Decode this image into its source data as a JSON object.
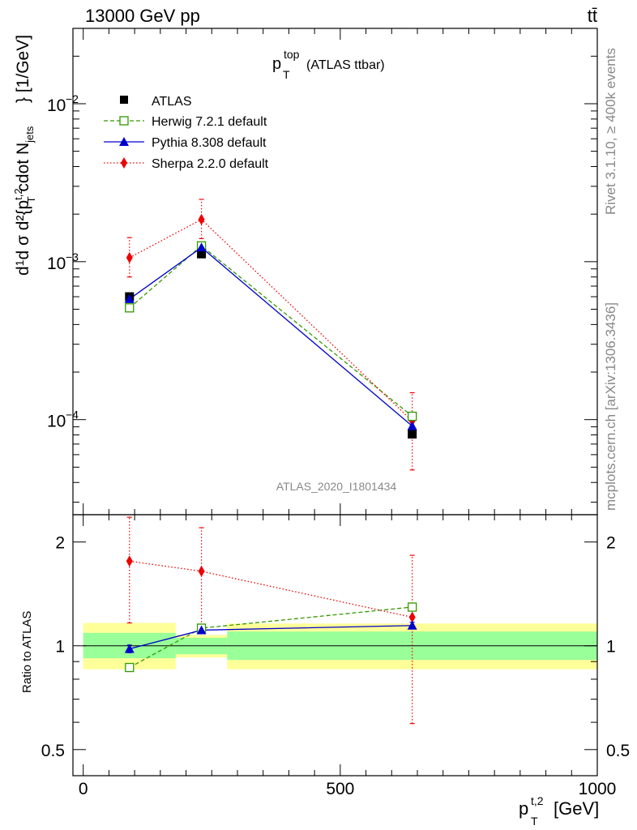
{
  "header": {
    "energy": "13000 GeV pp",
    "process": "tt̄"
  },
  "side": {
    "rivet": "Rivet 3.1.10, ≥ 400k events",
    "mcplots": "mcplots.cern.ch [arXiv:1306.3436]"
  },
  "colors": {
    "atlas": "#000000",
    "herwig": "#339900",
    "pythia": "#0000cc",
    "sherpa": "#ee0000",
    "band_inner": "#99ff99",
    "band_outer": "#ffff99"
  },
  "chart_data": [
    {
      "type": "scatter",
      "panel": "main",
      "title_main": "p",
      "title_sup": "top",
      "title_sub": "T",
      "title_rest": "(ATLAS ttbar)",
      "ylabel": "d²σ / d²{p_T^{t,2} cdot N_jets} [1/GeV]",
      "ylabel_unit": "} [1/GeV]",
      "yscale": "log",
      "ylim": [
        2.5e-05,
        0.03
      ],
      "xlim": [
        -20,
        1000
      ],
      "y_ticks": [
        {
          "value": 0.01,
          "label": "10",
          "exp": "−2"
        },
        {
          "value": 0.001,
          "label": "10",
          "exp": "−3"
        },
        {
          "value": 0.0001,
          "label": "10",
          "exp": "−4"
        }
      ],
      "watermark": "ATLAS_2020_I1801434",
      "legend_position": "top-left",
      "series": [
        {
          "name": "ATLAS",
          "marker": "square-filled",
          "line": "none",
          "x": [
            90,
            230,
            640
          ],
          "y": [
            0.0006,
            0.00112,
            8.1e-05
          ],
          "yerr": [
            0,
            0,
            0
          ]
        },
        {
          "name": "Herwig 7.2.1 default",
          "marker": "square-open",
          "line": "dashed",
          "x": [
            90,
            230,
            640
          ],
          "y": [
            0.00051,
            0.00126,
            0.000105
          ],
          "yerr": [
            0,
            0,
            0
          ]
        },
        {
          "name": "Pythia 8.308 default",
          "marker": "triangle",
          "line": "solid",
          "x": [
            90,
            230,
            640
          ],
          "y": [
            0.00058,
            0.00123,
            9.1e-05
          ],
          "yerr": [
            0,
            0,
            0
          ]
        },
        {
          "name": "Sherpa 2.2.0 default",
          "marker": "diamond",
          "line": "dotted",
          "x": [
            90,
            230,
            640
          ],
          "y": [
            0.00106,
            0.00185,
            9.8e-05
          ],
          "ylo": [
            0.0008,
            0.0014,
            4.8e-05
          ],
          "yhi": [
            0.00142,
            0.00248,
            0.000148
          ]
        }
      ]
    },
    {
      "type": "scatter",
      "panel": "ratio",
      "ylabel": "Ratio to ATLAS",
      "yscale": "log",
      "ylim": [
        0.42,
        2.4
      ],
      "xlim": [
        -20,
        1000
      ],
      "xlabel": "[GeV]",
      "xlabel_main": "p",
      "xlabel_sup": "t,2",
      "xlabel_sub": "T",
      "x_ticks": [
        {
          "value": 0,
          "label": "0"
        },
        {
          "value": 500,
          "label": "500"
        },
        {
          "value": 1000,
          "label": "1000"
        }
      ],
      "y_ticks": [
        {
          "value": 0.5,
          "label": "0.5"
        },
        {
          "value": 1,
          "label": "1"
        },
        {
          "value": 2,
          "label": "2"
        }
      ],
      "bands": [
        {
          "x0": 0,
          "x1": 180,
          "inner": [
            0.92,
            1.09
          ],
          "outer": [
            0.855,
            1.165
          ]
        },
        {
          "x0": 180,
          "x1": 280,
          "inner": [
            0.945,
            1.055
          ],
          "outer": [
            0.925,
            1.075
          ]
        },
        {
          "x0": 280,
          "x1": 1000,
          "inner": [
            0.91,
            1.1
          ],
          "outer": [
            0.855,
            1.16
          ]
        }
      ],
      "series": [
        {
          "name": "Herwig 7.2.1 default",
          "marker": "square-open",
          "line": "dashed",
          "x": [
            90,
            230,
            640
          ],
          "y": [
            0.865,
            1.125,
            1.295
          ]
        },
        {
          "name": "Pythia 8.308 default",
          "marker": "triangle",
          "line": "solid",
          "x": [
            90,
            230,
            640
          ],
          "y": [
            0.98,
            1.11,
            1.145
          ],
          "ylo": [
            0.955,
            1.095,
            1.12
          ],
          "yhi": [
            1.005,
            1.125,
            1.17
          ]
        },
        {
          "name": "Sherpa 2.2.0 default",
          "marker": "diamond",
          "line": "dotted",
          "x": [
            90,
            230,
            640
          ],
          "y": [
            1.76,
            1.645,
            1.21
          ],
          "ylo": [
            1.165,
            1.12,
            0.595
          ],
          "yhi": [
            2.36,
            2.2,
            1.83
          ]
        }
      ]
    }
  ]
}
